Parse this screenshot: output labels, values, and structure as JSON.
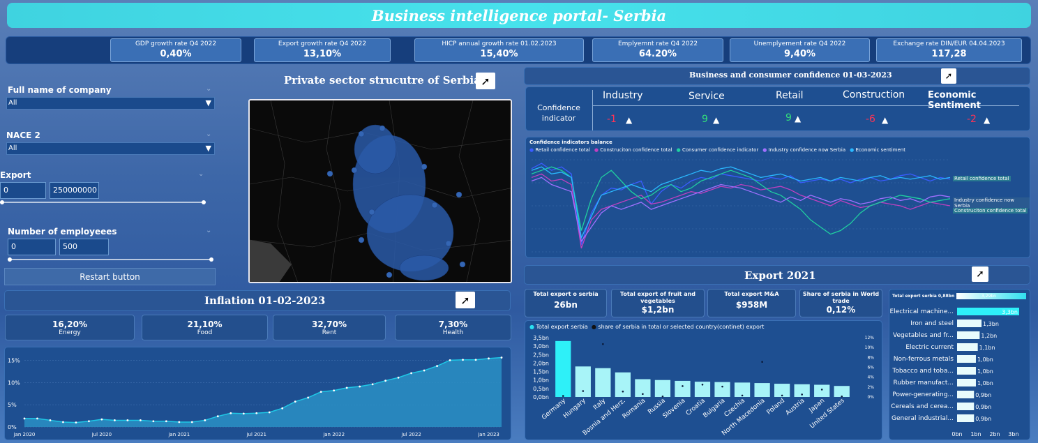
{
  "title": "Business intelligence portal- Serbia",
  "kpis": [
    {
      "label": "GDP growth rate Q4 2022",
      "value": "0,40%"
    },
    {
      "label": "Export growth rate Q4 2022",
      "value": "13,10%"
    },
    {
      "label": "HICP annual growth rate 01.02.2023",
      "value": "15,40%"
    },
    {
      "label": "Emplyemnt rate Q4 2022",
      "value": "64.20%"
    },
    {
      "label": "Unemplyement rate Q4 2022",
      "value": "9,40%"
    },
    {
      "label": "Exchange rate DIN/EUR 04.04.2023",
      "value": "117,28"
    }
  ],
  "filters": {
    "company_label": "Full name of company",
    "company_value": "All",
    "nace_label": "NACE 2",
    "nace_value": "All",
    "export_label": "Export",
    "export_min": "0",
    "export_max": "250000000",
    "employees_label": "Number of employeees",
    "employees_min": "0",
    "employees_max": "500",
    "restart_label": "Restart button"
  },
  "map": {
    "title": "Private sector strucutre of Serbia"
  },
  "inflation": {
    "title": "Inflation 01-02-2023",
    "cards": [
      {
        "value": "16,20%",
        "label": "Energy"
      },
      {
        "value": "21,10%",
        "label": "Food"
      },
      {
        "value": "32,70%",
        "label": "Rent"
      },
      {
        "value": "7,30%",
        "label": "Health"
      }
    ],
    "chart_data": {
      "type": "area",
      "x": [
        "jan 2020",
        "feb 2020",
        "mar 2020",
        "apr 2020",
        "may 2020",
        "jun 2020",
        "jul 2020",
        "aug 2020",
        "sep 2020",
        "oct 2020",
        "nov 2020",
        "dec 2020",
        "jan 2021",
        "feb 2021",
        "mar 2021",
        "apr 2021",
        "may 2021",
        "jun 2021",
        "jul 2021",
        "aug 2021",
        "sep 2021",
        "oct 2021",
        "nov 2021",
        "dec 2021",
        "jan 2022",
        "feb 2022",
        "mar 2022",
        "apr 2022",
        "may 2022",
        "jun 2022",
        "jul 2022",
        "aug 2022",
        "sep 2022",
        "oct 2022",
        "nov 2022",
        "dec 2022",
        "jan 2023",
        "feb 2023"
      ],
      "values": [
        1.9,
        1.9,
        1.5,
        1.1,
        1.0,
        1.3,
        1.7,
        1.5,
        1.5,
        1.5,
        1.3,
        1.3,
        1.1,
        1.1,
        1.5,
        2.4,
        3.1,
        3.0,
        3.1,
        3.3,
        4.2,
        5.7,
        6.6,
        7.9,
        8.2,
        8.8,
        9.1,
        9.6,
        10.4,
        11.1,
        12.1,
        12.7,
        13.7,
        15.0,
        15.1,
        15.1,
        15.4,
        15.6
      ],
      "xticks": [
        "jan 2020",
        "jul 2020",
        "jan 2021",
        "jul 2021",
        "jan 2022",
        "jul 2022",
        "jan 2023"
      ],
      "yticks": [
        "0%",
        "5%",
        "10%",
        "15%"
      ],
      "ylim": [
        0,
        16
      ],
      "color": "#1ec8e6"
    }
  },
  "confidence": {
    "title": "Business and consumer confidence 01-03-2023",
    "row_label": "Confidence indicator",
    "cols": [
      {
        "name": "Industry",
        "value": "-1",
        "color": "#ff3355"
      },
      {
        "name": "Service",
        "value": "9",
        "color": "#33e07a"
      },
      {
        "name": "Retail",
        "value": "9",
        "color": "#33e07a"
      },
      {
        "name": "Construction",
        "value": "-6",
        "color": "#ff3355"
      },
      {
        "name": "Economic Sentiment",
        "value": "-2",
        "color": "#ff3355"
      }
    ],
    "arrow": "▲"
  },
  "balance": {
    "title": "Confidence indicators balance",
    "legend": [
      "Retail confidence total",
      "Construciton confidence total",
      "Consumer confidence indicator",
      "Industry confidence now Serbia",
      "Economic sentiment"
    ],
    "labels_right": [
      "Retail confidence total",
      "Industry confidence now Serbia",
      "Construciton confidence total"
    ],
    "chart_data": {
      "type": "line",
      "series": [
        {
          "name": "Retail confidence total",
          "color": "#3a5cff",
          "values": [
            15,
            18,
            14,
            16,
            12,
            -28,
            -10,
            0,
            4,
            3,
            6,
            8,
            -5,
            2,
            6,
            4,
            8,
            10,
            9,
            12,
            11,
            10,
            9,
            8,
            10,
            9,
            11,
            7,
            8,
            9,
            8,
            9,
            7,
            9,
            10,
            8,
            9,
            11,
            12,
            10,
            8,
            10,
            9
          ]
        },
        {
          "name": "Construciton confidence total",
          "color": "#c040c0",
          "values": [
            10,
            12,
            8,
            9,
            6,
            -30,
            -14,
            -8,
            -6,
            -4,
            -2,
            0,
            -5,
            -4,
            -2,
            0,
            2,
            1,
            3,
            5,
            4,
            6,
            5,
            3,
            4,
            5,
            3,
            0,
            -2,
            -4,
            -6,
            -3,
            -5,
            -7,
            -6,
            -4,
            -5,
            -6,
            -8,
            -6,
            -4,
            -5,
            -6
          ]
        },
        {
          "name": "Consumer confidence indicator",
          "color": "#20d0a0",
          "values": [
            12,
            14,
            16,
            14,
            10,
            -20,
            -2,
            10,
            14,
            8,
            2,
            -2,
            0,
            4,
            6,
            2,
            4,
            8,
            10,
            12,
            14,
            12,
            10,
            6,
            2,
            0,
            -4,
            -8,
            -14,
            -18,
            -22,
            -20,
            -16,
            -10,
            -6,
            -4,
            -2,
            0,
            -1,
            -2,
            -4,
            -3,
            -2
          ]
        },
        {
          "name": "Industry confidence now Serbia",
          "color": "#a070ff",
          "values": [
            8,
            10,
            6,
            4,
            2,
            -26,
            -18,
            -10,
            -6,
            -8,
            -6,
            -4,
            -8,
            -6,
            -4,
            -2,
            0,
            2,
            4,
            6,
            5,
            4,
            2,
            0,
            -2,
            -4,
            -1,
            -3,
            0,
            -2,
            -4,
            -2,
            -3,
            -5,
            -4,
            -2,
            -1,
            -3,
            -2,
            -4,
            -1,
            0,
            -1
          ]
        },
        {
          "name": "Economic sentiment",
          "color": "#2ab8ff",
          "values": [
            14,
            16,
            12,
            13,
            10,
            -24,
            -12,
            0,
            2,
            4,
            6,
            4,
            2,
            6,
            8,
            10,
            12,
            14,
            13,
            15,
            16,
            14,
            12,
            10,
            11,
            12,
            10,
            8,
            9,
            10,
            8,
            10,
            9,
            8,
            10,
            11,
            9,
            10,
            9,
            10,
            11,
            9,
            10
          ]
        }
      ]
    }
  },
  "export": {
    "title": "Export 2021",
    "cards": [
      {
        "label": "Total export o serbia",
        "value": "26bn"
      },
      {
        "label": "Total export of fruit and vegetables",
        "value": "$1,2bn"
      },
      {
        "label": "Total export M&A",
        "value": "$958M"
      },
      {
        "label": "Share of serbia in World trade",
        "value": "0,12%"
      }
    ],
    "legend": [
      "Total export serbia",
      "share of serbia in total or selected country(continet) export"
    ],
    "chart_data": {
      "type": "bar",
      "categories": [
        "Germany",
        "Hungary",
        "Italy",
        "Bosnia and Herz.",
        "Romania",
        "Russia",
        "Slovenia",
        "Croatia",
        "Bulgaria",
        "Czechia",
        "North Macedonia",
        "Poland",
        "Austria",
        "Japan",
        "United States"
      ],
      "series": [
        {
          "name": "Total export serbia",
          "values": [
            3.3,
            1.8,
            1.7,
            1.45,
            1.05,
            1.0,
            0.95,
            0.9,
            0.88,
            0.85,
            0.82,
            0.78,
            0.75,
            0.72,
            0.65
          ]
        },
        {
          "name": "share of serbia in total or selected country(continet) export",
          "values": [
            0.2,
            1.2,
            10.7,
            1.1,
            0.6,
            0.1,
            2.2,
            2.5,
            2.1,
            0.3,
            7.1,
            0.3,
            0.5,
            1.5,
            0.1
          ]
        }
      ],
      "yticks_left": [
        "0,0bn",
        "0,5bn",
        "1,0bn",
        "1,5bn",
        "2,0bn",
        "2,5bn",
        "3,0bn",
        "3,5bn"
      ],
      "yticks_right": [
        "0%",
        "2%",
        "4%",
        "6%",
        "8%",
        "10%",
        "12%"
      ],
      "ylim": [
        0,
        3.5
      ],
      "ylim_right": [
        0,
        12
      ]
    }
  },
  "products": {
    "header_label": "Total export serbia",
    "header_min": "0,88bn",
    "header_max": "3,29bn",
    "chart_data": {
      "type": "bar",
      "categories": [
        "Electrical machine...",
        "Iron and steel",
        "Vegetables and fr...",
        "Electric current",
        "Non-ferrous metals",
        "Tobacco and toba...",
        "Rubber manufact...",
        "Power-generating...",
        "Cereals and cerea...",
        "General industrial..."
      ],
      "values": [
        3.3,
        1.3,
        1.2,
        1.1,
        1.0,
        1.0,
        1.0,
        0.9,
        0.9,
        0.9
      ],
      "labels": [
        "3,3bn",
        "1,3bn",
        "1,2bn",
        "1,1bn",
        "1,0bn",
        "1,0bn",
        "1,0bn",
        "0,9bn",
        "0,9bn",
        "0,9bn"
      ],
      "xticks": [
        "0bn",
        "1bn",
        "2bn",
        "3bn"
      ],
      "xlim": [
        0,
        3.3
      ]
    }
  }
}
